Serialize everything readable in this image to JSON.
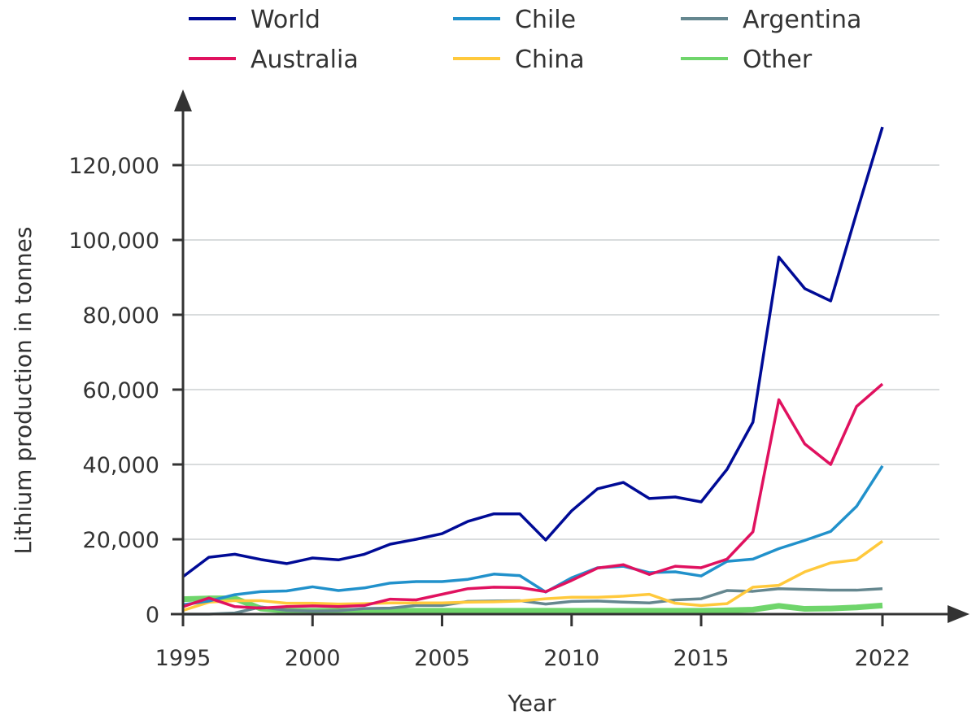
{
  "chart_data": {
    "type": "line",
    "title": "",
    "xlabel": "Year",
    "ylabel": "Lithium production in tonnes",
    "xlim": [
      1995,
      2022
    ],
    "ylim": [
      0,
      130000
    ],
    "grid": true,
    "legend_position": "top",
    "x_ticks": [
      1995,
      2000,
      2005,
      2010,
      2015,
      2022
    ],
    "x_tick_labels": [
      "1995",
      "2000",
      "2005",
      "2010",
      "2015",
      "2022"
    ],
    "y_ticks": [
      0,
      20000,
      40000,
      60000,
      80000,
      100000,
      120000
    ],
    "y_tick_labels": [
      "0",
      "20,000",
      "40,000",
      "60,000",
      "80,000",
      "100,000",
      "120,000"
    ],
    "x": [
      1995,
      1996,
      1997,
      1998,
      1999,
      2000,
      2001,
      2002,
      2003,
      2004,
      2005,
      2006,
      2007,
      2008,
      2009,
      2010,
      2011,
      2012,
      2013,
      2014,
      2015,
      2016,
      2017,
      2018,
      2019,
      2020,
      2021,
      2022
    ],
    "series": [
      {
        "name": "World",
        "color": "#000b96",
        "values": [
          10000,
          15200,
          16000,
          14600,
          13500,
          15000,
          14500,
          16000,
          18700,
          20000,
          21500,
          24800,
          26800,
          26800,
          19800,
          27600,
          33500,
          35200,
          30900,
          31300,
          30000,
          38700,
          51300,
          95400,
          87000,
          83700,
          107200,
          130200
        ]
      },
      {
        "name": "Australia",
        "color": "#e0115f",
        "values": [
          2000,
          4300,
          2000,
          1600,
          2000,
          2200,
          2000,
          2300,
          4000,
          3800,
          5300,
          6800,
          7200,
          7100,
          6000,
          9000,
          12300,
          13200,
          10600,
          12800,
          12400,
          14700,
          22000,
          57300,
          45500,
          40000,
          55500,
          61500
        ]
      },
      {
        "name": "Chile",
        "color": "#2191cb",
        "values": [
          2500,
          3500,
          5200,
          6000,
          6200,
          7300,
          6300,
          7000,
          8300,
          8700,
          8700,
          9300,
          10700,
          10300,
          5900,
          9700,
          12400,
          12800,
          11100,
          11300,
          10200,
          14100,
          14700,
          17500,
          19700,
          22100,
          28800,
          39600
        ]
      },
      {
        "name": "China",
        "color": "#ffc93c",
        "values": [
          1000,
          3200,
          3600,
          3600,
          2900,
          2900,
          2700,
          2800,
          3000,
          3000,
          3000,
          3200,
          3300,
          3500,
          4100,
          4500,
          4500,
          4800,
          5300,
          2900,
          2300,
          2800,
          7200,
          7700,
          11300,
          13700,
          14500,
          19500
        ]
      },
      {
        "name": "Argentina",
        "color": "#65878f",
        "values": [
          0,
          0,
          300,
          1900,
          1000,
          800,
          900,
          1500,
          1600,
          2300,
          2300,
          3400,
          3500,
          3600,
          2700,
          3400,
          3500,
          3200,
          3000,
          3800,
          4100,
          6300,
          6100,
          6800,
          6600,
          6400,
          6400,
          6800
        ]
      },
      {
        "name": "Other",
        "color": "#6fd56b",
        "values": [
          4000,
          4200,
          4200,
          1500,
          900,
          900,
          900,
          900,
          900,
          900,
          900,
          900,
          900,
          900,
          900,
          900,
          900,
          900,
          900,
          900,
          900,
          1000,
          1200,
          2200,
          1400,
          1500,
          1800,
          2300
        ]
      }
    ]
  }
}
